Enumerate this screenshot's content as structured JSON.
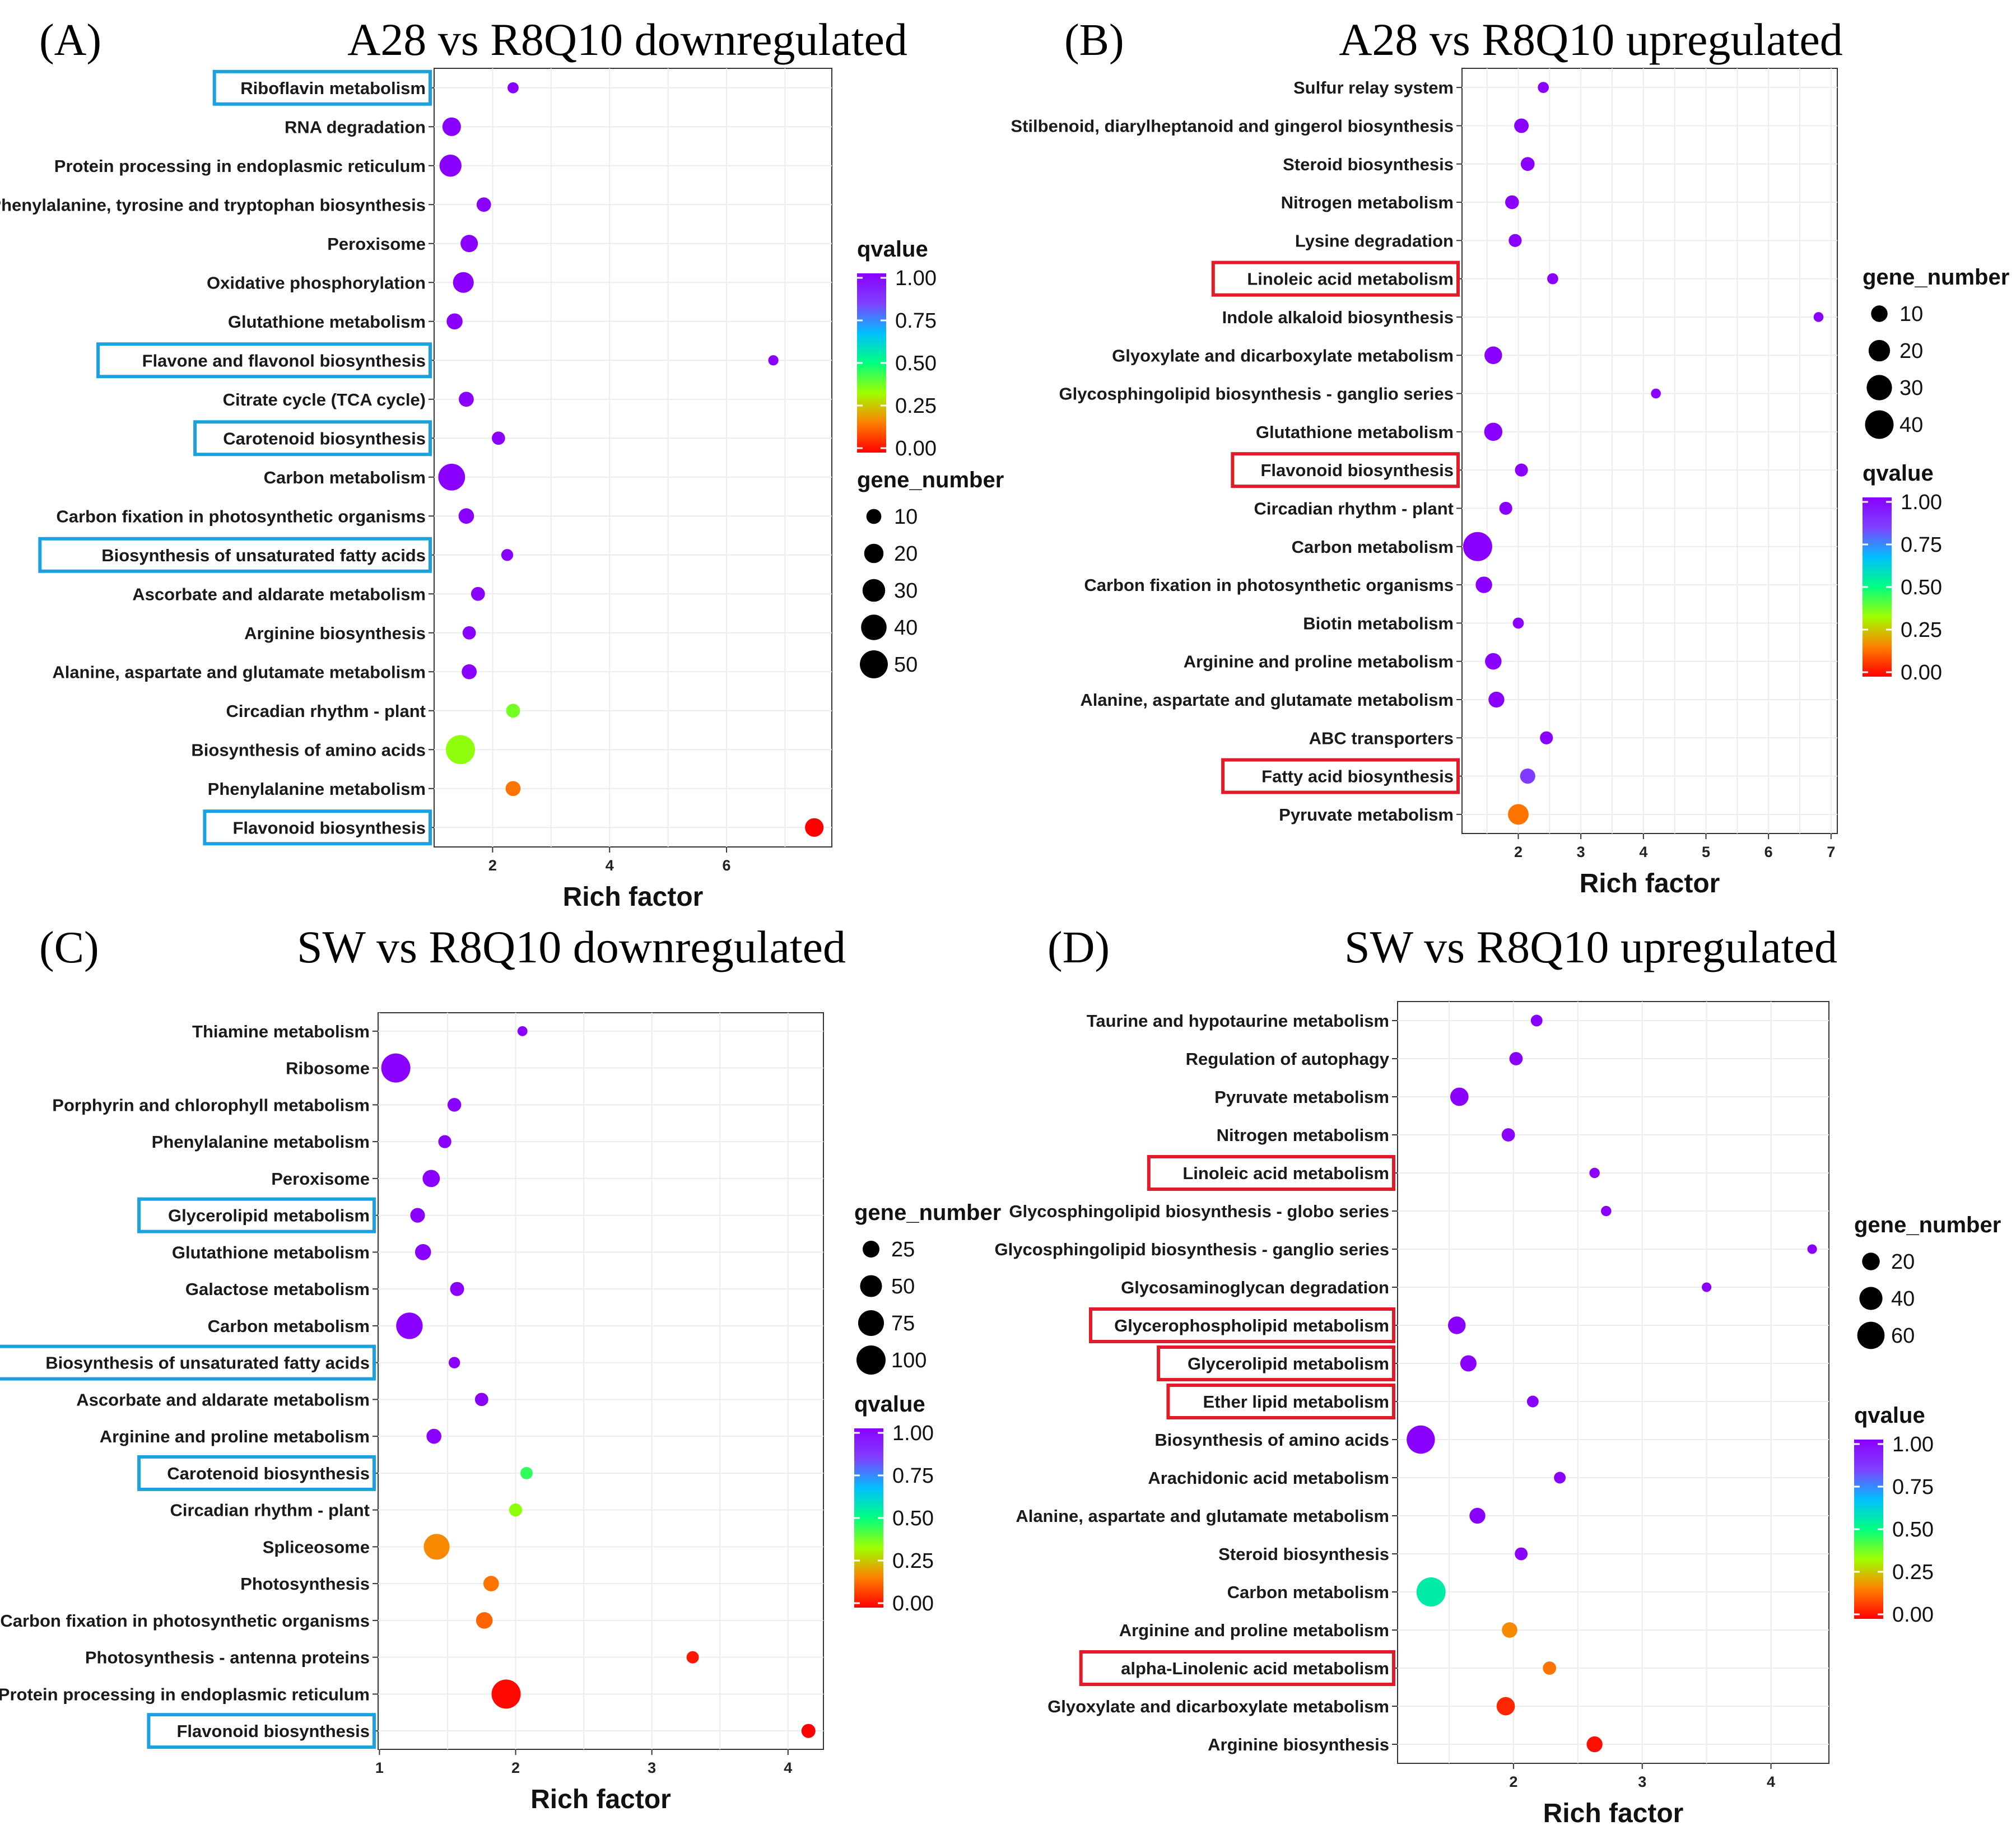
{
  "colors": {
    "q_scale": [
      "#ff0000",
      "#ff8000",
      "#a0ff00",
      "#00ff80",
      "#00c0ff",
      "#8040ff",
      "#8a00ff"
    ],
    "highlight_blue": "#1ca1e0",
    "highlight_red": "#e01c2a",
    "grid": "#ececec",
    "panel_bg": "#ffffff"
  },
  "chart_data": [
    {
      "panel": "(A)",
      "type": "scatter",
      "title": "A28 vs R8Q10 downregulated",
      "xlabel": "Rich factor",
      "xlim": [
        1.0,
        7.8
      ],
      "xticks": [
        2,
        4,
        6
      ],
      "tick_labels": [
        "2",
        "4",
        "6"
      ],
      "highlight": "blue",
      "size_legend": {
        "title": "gene_number",
        "values": [
          10,
          20,
          30,
          40,
          50
        ]
      },
      "color_legend": {
        "title": "qvalue",
        "labels": [
          "1.00",
          "0.75",
          "0.50",
          "0.25",
          "0.00"
        ]
      },
      "legend_order": [
        "qvalue",
        "gene_number"
      ],
      "points": [
        {
          "pathway": "Riboflavin metabolism",
          "rich_factor": 2.35,
          "gene_number": 4,
          "qvalue": 1.0,
          "highlighted": true
        },
        {
          "pathway": "RNA degradation",
          "rich_factor": 1.3,
          "gene_number": 18,
          "qvalue": 1.0,
          "highlighted": false
        },
        {
          "pathway": "Protein processing in endoplasmic reticulum",
          "rich_factor": 1.28,
          "gene_number": 28,
          "qvalue": 1.0,
          "highlighted": false
        },
        {
          "pathway": "Phenylalanine, tyrosine and tryptophan biosynthesis",
          "rich_factor": 1.85,
          "gene_number": 9,
          "qvalue": 1.0,
          "highlighted": false
        },
        {
          "pathway": "Peroxisome",
          "rich_factor": 1.6,
          "gene_number": 15,
          "qvalue": 1.0,
          "highlighted": false
        },
        {
          "pathway": "Oxidative phosphorylation",
          "rich_factor": 1.5,
          "gene_number": 24,
          "qvalue": 1.0,
          "highlighted": false
        },
        {
          "pathway": "Glutathione metabolism",
          "rich_factor": 1.35,
          "gene_number": 12,
          "qvalue": 1.0,
          "highlighted": false
        },
        {
          "pathway": "Flavone and flavonol biosynthesis",
          "rich_factor": 6.8,
          "gene_number": 3,
          "qvalue": 1.0,
          "highlighted": true
        },
        {
          "pathway": "Citrate cycle (TCA cycle)",
          "rich_factor": 1.55,
          "gene_number": 10,
          "qvalue": 1.0,
          "highlighted": false
        },
        {
          "pathway": "Carotenoid biosynthesis",
          "rich_factor": 2.1,
          "gene_number": 7,
          "qvalue": 1.0,
          "highlighted": true
        },
        {
          "pathway": "Carbon metabolism",
          "rich_factor": 1.3,
          "gene_number": 45,
          "qvalue": 1.0,
          "highlighted": false
        },
        {
          "pathway": "Carbon fixation in photosynthetic organisms",
          "rich_factor": 1.55,
          "gene_number": 11,
          "qvalue": 1.0,
          "highlighted": false
        },
        {
          "pathway": "Biosynthesis of unsaturated fatty acids",
          "rich_factor": 2.25,
          "gene_number": 5,
          "qvalue": 1.0,
          "highlighted": true
        },
        {
          "pathway": "Ascorbate and aldarate metabolism",
          "rich_factor": 1.75,
          "gene_number": 8,
          "qvalue": 1.0,
          "highlighted": false
        },
        {
          "pathway": "Arginine biosynthesis",
          "rich_factor": 1.6,
          "gene_number": 7,
          "qvalue": 1.0,
          "highlighted": false
        },
        {
          "pathway": "Alanine, aspartate and glutamate metabolism",
          "rich_factor": 1.6,
          "gene_number": 10,
          "qvalue": 1.0,
          "highlighted": false
        },
        {
          "pathway": "Circadian rhythm - plant",
          "rich_factor": 2.35,
          "gene_number": 8,
          "qvalue": 0.38,
          "highlighted": false
        },
        {
          "pathway": "Biosynthesis of amino acids",
          "rich_factor": 1.45,
          "gene_number": 55,
          "qvalue": 0.35,
          "highlighted": false
        },
        {
          "pathway": "Phenylalanine metabolism",
          "rich_factor": 2.35,
          "gene_number": 10,
          "qvalue": 0.15,
          "highlighted": false
        },
        {
          "pathway": "Flavonoid biosynthesis",
          "rich_factor": 7.5,
          "gene_number": 18,
          "qvalue": 0.0,
          "highlighted": true
        }
      ]
    },
    {
      "panel": "(B)",
      "type": "scatter",
      "title": "A28 vs R8Q10 upregulated",
      "xlabel": "Rich factor",
      "xlim": [
        1.1,
        7.1
      ],
      "xticks": [
        2,
        3,
        4,
        5,
        6,
        7
      ],
      "tick_labels": [
        "2",
        "3",
        "4",
        "5",
        "6",
        "7"
      ],
      "highlight": "red",
      "size_legend": {
        "title": "gene_number",
        "values": [
          10,
          20,
          30,
          40
        ]
      },
      "color_legend": {
        "title": "qvalue",
        "labels": [
          "1.00",
          "0.75",
          "0.50",
          "0.25",
          "0.00"
        ]
      },
      "legend_order": [
        "gene_number",
        "qvalue"
      ],
      "points": [
        {
          "pathway": "Sulfur relay system",
          "rich_factor": 2.4,
          "gene_number": 3,
          "qvalue": 1.0,
          "highlighted": false
        },
        {
          "pathway": "Stilbenoid, diarylheptanoid and gingerol biosynthesis",
          "rich_factor": 2.05,
          "gene_number": 7,
          "qvalue": 1.0,
          "highlighted": false
        },
        {
          "pathway": "Steroid biosynthesis",
          "rich_factor": 2.15,
          "gene_number": 6,
          "qvalue": 1.0,
          "highlighted": false
        },
        {
          "pathway": "Nitrogen metabolism",
          "rich_factor": 1.9,
          "gene_number": 6,
          "qvalue": 1.0,
          "highlighted": false
        },
        {
          "pathway": "Lysine degradation",
          "rich_factor": 1.95,
          "gene_number": 5,
          "qvalue": 1.0,
          "highlighted": false
        },
        {
          "pathway": "Linoleic acid metabolism",
          "rich_factor": 2.55,
          "gene_number": 3,
          "qvalue": 1.0,
          "highlighted": true
        },
        {
          "pathway": "Indole alkaloid biosynthesis",
          "rich_factor": 6.8,
          "gene_number": 2,
          "qvalue": 1.0,
          "highlighted": false
        },
        {
          "pathway": "Glyoxylate and dicarboxylate metabolism",
          "rich_factor": 1.6,
          "gene_number": 12,
          "qvalue": 1.0,
          "highlighted": false
        },
        {
          "pathway": "Glycosphingolipid biosynthesis - ganglio series",
          "rich_factor": 4.2,
          "gene_number": 2,
          "qvalue": 1.0,
          "highlighted": false
        },
        {
          "pathway": "Glutathione metabolism",
          "rich_factor": 1.6,
          "gene_number": 13,
          "qvalue": 1.0,
          "highlighted": false
        },
        {
          "pathway": "Flavonoid biosynthesis",
          "rich_factor": 2.05,
          "gene_number": 5,
          "qvalue": 1.0,
          "highlighted": true
        },
        {
          "pathway": "Circadian rhythm - plant",
          "rich_factor": 1.8,
          "gene_number": 5,
          "qvalue": 1.0,
          "highlighted": false
        },
        {
          "pathway": "Carbon metabolism",
          "rich_factor": 1.35,
          "gene_number": 42,
          "qvalue": 1.0,
          "highlighted": false
        },
        {
          "pathway": "Carbon fixation in photosynthetic organisms",
          "rich_factor": 1.45,
          "gene_number": 10,
          "qvalue": 1.0,
          "highlighted": false
        },
        {
          "pathway": "Biotin metabolism",
          "rich_factor": 2.0,
          "gene_number": 3,
          "qvalue": 1.0,
          "highlighted": false
        },
        {
          "pathway": "Arginine and proline metabolism",
          "rich_factor": 1.6,
          "gene_number": 10,
          "qvalue": 1.0,
          "highlighted": false
        },
        {
          "pathway": "Alanine, aspartate and glutamate metabolism",
          "rich_factor": 1.65,
          "gene_number": 9,
          "qvalue": 1.0,
          "highlighted": false
        },
        {
          "pathway": "ABC transporters",
          "rich_factor": 2.45,
          "gene_number": 5,
          "qvalue": 1.0,
          "highlighted": false
        },
        {
          "pathway": "Fatty acid biosynthesis",
          "rich_factor": 2.15,
          "gene_number": 8,
          "qvalue": 0.85,
          "highlighted": true
        },
        {
          "pathway": "Pyruvate metabolism",
          "rich_factor": 2.0,
          "gene_number": 18,
          "qvalue": 0.15,
          "highlighted": false
        }
      ]
    },
    {
      "panel": "(C)",
      "type": "scatter",
      "title": "SW vs R8Q10 downregulated",
      "xlabel": "Rich factor",
      "xlim": [
        0.99,
        4.26
      ],
      "xticks": [
        1,
        2,
        3,
        4
      ],
      "tick_labels": [
        "1",
        "2",
        "3",
        "4"
      ],
      "highlight": "blue",
      "size_legend": {
        "title": "gene_number",
        "values": [
          25,
          50,
          75,
          100
        ]
      },
      "color_legend": {
        "title": "qvalue",
        "labels": [
          "1.00",
          "0.75",
          "0.50",
          "0.25",
          "0.00"
        ]
      },
      "legend_order": [
        "gene_number",
        "qvalue"
      ],
      "points": [
        {
          "pathway": "Thiamine metabolism",
          "rich_factor": 2.05,
          "gene_number": 5,
          "qvalue": 1.0,
          "highlighted": false
        },
        {
          "pathway": "Ribosome",
          "rich_factor": 1.12,
          "gene_number": 100,
          "qvalue": 1.0,
          "highlighted": false
        },
        {
          "pathway": "Porphyrin and chlorophyll metabolism",
          "rich_factor": 1.55,
          "gene_number": 14,
          "qvalue": 1.0,
          "highlighted": false
        },
        {
          "pathway": "Phenylalanine metabolism",
          "rich_factor": 1.48,
          "gene_number": 12,
          "qvalue": 1.0,
          "highlighted": false
        },
        {
          "pathway": "Peroxisome",
          "rich_factor": 1.38,
          "gene_number": 27,
          "qvalue": 1.0,
          "highlighted": false
        },
        {
          "pathway": "Glycerolipid metabolism",
          "rich_factor": 1.28,
          "gene_number": 17,
          "qvalue": 1.0,
          "highlighted": true
        },
        {
          "pathway": "Glutathione metabolism",
          "rich_factor": 1.32,
          "gene_number": 22,
          "qvalue": 1.0,
          "highlighted": false
        },
        {
          "pathway": "Galactose metabolism",
          "rich_factor": 1.57,
          "gene_number": 15,
          "qvalue": 1.0,
          "highlighted": false
        },
        {
          "pathway": "Carbon metabolism",
          "rich_factor": 1.22,
          "gene_number": 80,
          "qvalue": 1.0,
          "highlighted": false
        },
        {
          "pathway": "Biosynthesis of unsaturated fatty acids",
          "rich_factor": 1.55,
          "gene_number": 8,
          "qvalue": 1.0,
          "highlighted": true
        },
        {
          "pathway": "Ascorbate and aldarate metabolism",
          "rich_factor": 1.75,
          "gene_number": 13,
          "qvalue": 1.0,
          "highlighted": false
        },
        {
          "pathway": "Arginine and proline metabolism",
          "rich_factor": 1.4,
          "gene_number": 18,
          "qvalue": 1.0,
          "highlighted": false
        },
        {
          "pathway": "Carotenoid biosynthesis",
          "rich_factor": 2.08,
          "gene_number": 10,
          "qvalue": 0.45,
          "highlighted": true
        },
        {
          "pathway": "Circadian rhythm - plant",
          "rich_factor": 2.0,
          "gene_number": 12,
          "qvalue": 0.35,
          "highlighted": false
        },
        {
          "pathway": "Spliceosome",
          "rich_factor": 1.42,
          "gene_number": 75,
          "qvalue": 0.18,
          "highlighted": false
        },
        {
          "pathway": "Photosynthesis",
          "rich_factor": 1.82,
          "gene_number": 20,
          "qvalue": 0.15,
          "highlighted": false
        },
        {
          "pathway": "Carbon fixation in photosynthetic organisms",
          "rich_factor": 1.77,
          "gene_number": 24,
          "qvalue": 0.13,
          "highlighted": false
        },
        {
          "pathway": "Photosynthesis - antenna proteins",
          "rich_factor": 3.3,
          "gene_number": 10,
          "qvalue": 0.03,
          "highlighted": false
        },
        {
          "pathway": "Protein processing in endoplasmic reticulum",
          "rich_factor": 1.93,
          "gene_number": 100,
          "qvalue": 0.01,
          "highlighted": false
        },
        {
          "pathway": "Flavonoid biosynthesis",
          "rich_factor": 4.15,
          "gene_number": 15,
          "qvalue": 0.0,
          "highlighted": true
        }
      ]
    },
    {
      "panel": "(D)",
      "type": "scatter",
      "title": "SW vs R8Q10 upregulated",
      "xlabel": "Rich factor",
      "xlim": [
        1.1,
        4.45
      ],
      "xticks": [
        2,
        3,
        4
      ],
      "tick_labels": [
        "2",
        "3",
        "4"
      ],
      "highlight": "red",
      "size_legend": {
        "title": "gene_number",
        "values": [
          20,
          40,
          60
        ]
      },
      "color_legend": {
        "title": "qvalue",
        "labels": [
          "1.00",
          "0.75",
          "0.50",
          "0.25",
          "0.00"
        ]
      },
      "legend_order": [
        "gene_number",
        "qvalue"
      ],
      "points": [
        {
          "pathway": "Taurine and hypotaurine metabolism",
          "rich_factor": 2.18,
          "gene_number": 6,
          "qvalue": 1.0,
          "highlighted": false
        },
        {
          "pathway": "Regulation of autophagy",
          "rich_factor": 2.02,
          "gene_number": 9,
          "qvalue": 1.0,
          "highlighted": false
        },
        {
          "pathway": "Pyruvate metabolism",
          "rich_factor": 1.58,
          "gene_number": 22,
          "qvalue": 1.0,
          "highlighted": false
        },
        {
          "pathway": "Nitrogen metabolism",
          "rich_factor": 1.96,
          "gene_number": 9,
          "qvalue": 1.0,
          "highlighted": false
        },
        {
          "pathway": "Linoleic acid metabolism",
          "rich_factor": 2.63,
          "gene_number": 4,
          "qvalue": 1.0,
          "highlighted": true
        },
        {
          "pathway": "Glycosphingolipid biosynthesis - globo series",
          "rich_factor": 2.72,
          "gene_number": 4,
          "qvalue": 1.0,
          "highlighted": false
        },
        {
          "pathway": "Glycosphingolipid biosynthesis - ganglio series",
          "rich_factor": 4.32,
          "gene_number": 3,
          "qvalue": 1.0,
          "highlighted": false
        },
        {
          "pathway": "Glycosaminoglycan degradation",
          "rich_factor": 3.5,
          "gene_number": 3,
          "qvalue": 1.0,
          "highlighted": false
        },
        {
          "pathway": "Glycerophospholipid metabolism",
          "rich_factor": 1.56,
          "gene_number": 20,
          "qvalue": 1.0,
          "highlighted": true
        },
        {
          "pathway": "Glycerolipid metabolism",
          "rich_factor": 1.65,
          "gene_number": 16,
          "qvalue": 1.0,
          "highlighted": true
        },
        {
          "pathway": "Ether lipid metabolism",
          "rich_factor": 2.15,
          "gene_number": 6,
          "qvalue": 1.0,
          "highlighted": true
        },
        {
          "pathway": "Biosynthesis of amino acids",
          "rich_factor": 1.28,
          "gene_number": 65,
          "qvalue": 1.0,
          "highlighted": false
        },
        {
          "pathway": "Arachidonic acid metabolism",
          "rich_factor": 2.36,
          "gene_number": 6,
          "qvalue": 1.0,
          "highlighted": false
        },
        {
          "pathway": "Alanine, aspartate and glutamate metabolism",
          "rich_factor": 1.72,
          "gene_number": 15,
          "qvalue": 1.0,
          "highlighted": false
        },
        {
          "pathway": "Steroid biosynthesis",
          "rich_factor": 2.06,
          "gene_number": 8,
          "qvalue": 1.0,
          "highlighted": false
        },
        {
          "pathway": "Carbon metabolism",
          "rich_factor": 1.36,
          "gene_number": 70,
          "qvalue": 0.55,
          "highlighted": false
        },
        {
          "pathway": "Arginine and proline metabolism",
          "rich_factor": 1.97,
          "gene_number": 14,
          "qvalue": 0.18,
          "highlighted": false
        },
        {
          "pathway": "alpha-Linolenic acid metabolism",
          "rich_factor": 2.28,
          "gene_number": 9,
          "qvalue": 0.15,
          "highlighted": true
        },
        {
          "pathway": "Glyoxylate and dicarboxylate metabolism",
          "rich_factor": 1.94,
          "gene_number": 22,
          "qvalue": 0.05,
          "highlighted": false
        },
        {
          "pathway": "Arginine biosynthesis",
          "rich_factor": 2.63,
          "gene_number": 15,
          "qvalue": 0.02,
          "highlighted": false
        }
      ]
    }
  ]
}
